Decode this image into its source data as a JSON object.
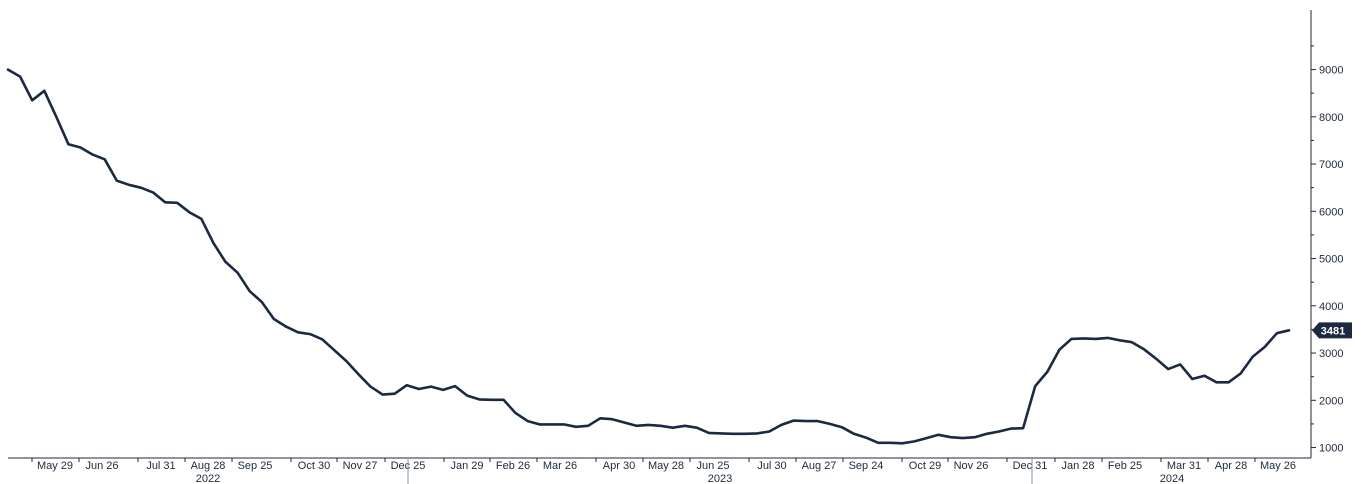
{
  "chart_data": {
    "type": "line",
    "title": "",
    "xlabel": "",
    "ylabel": "",
    "ylim": [
      0,
      9500
    ],
    "yticks": [
      1000,
      2000,
      3000,
      4000,
      5000,
      6000,
      7000,
      8000,
      9000
    ],
    "grid": false,
    "axis_side": "right",
    "line_color": "#1b2a41",
    "last_value_label": "3481",
    "x_tick_labels": [
      "May 29",
      "Jun 26",
      "Jul 31",
      "Aug 28",
      "Sep 25",
      "Oct 30",
      "Nov 27",
      "Dec 25",
      "Jan 29",
      "Feb 26",
      "Mar 26",
      "Apr 30",
      "May 28",
      "Jun 25",
      "Jul 30",
      "Aug 27",
      "Sep 24",
      "Oct 29",
      "Nov 26",
      "Dec 31",
      "Jan 28",
      "Feb 25",
      "Mar 31",
      "Apr 28",
      "May 26"
    ],
    "year_labels": [
      "2022",
      "2023",
      "2024"
    ],
    "series": [
      {
        "values": [
          9000,
          8850,
          8350,
          8550,
          8000,
          7420,
          7350,
          7200,
          7100,
          6650,
          6560,
          6500,
          6400,
          6190,
          6180,
          5980,
          5840,
          5330,
          4930,
          4700,
          4310,
          4080,
          3720,
          3560,
          3440,
          3400,
          3290,
          3060,
          2830,
          2550,
          2290,
          2120,
          2140,
          2320,
          2240,
          2290,
          2220,
          2300,
          2100,
          2020,
          2010,
          2010,
          1730,
          1560,
          1490,
          1490,
          1490,
          1440,
          1460,
          1620,
          1600,
          1530,
          1460,
          1480,
          1460,
          1420,
          1460,
          1420,
          1310,
          1300,
          1290,
          1290,
          1300,
          1340,
          1480,
          1570,
          1560,
          1560,
          1500,
          1430,
          1290,
          1210,
          1100,
          1100,
          1090,
          1130,
          1200,
          1270,
          1220,
          1200,
          1220,
          1290,
          1340,
          1400,
          1410,
          2300,
          2600,
          3070,
          3300,
          3310,
          3300,
          3320,
          3270,
          3230,
          3080,
          2880,
          2660,
          2760,
          2450,
          2520,
          2380,
          2380,
          2570,
          2920,
          3130,
          3420,
          3481
        ]
      }
    ]
  }
}
